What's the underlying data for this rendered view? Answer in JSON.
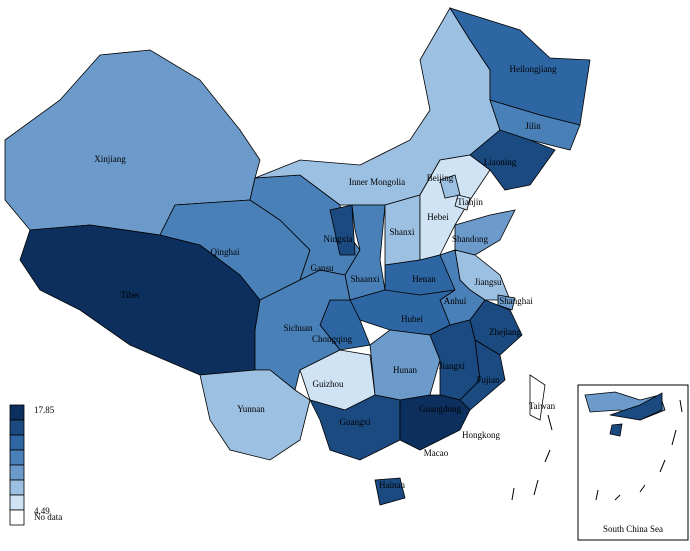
{
  "map": {
    "regions": [
      {
        "label": "Xinjiang",
        "color": "#6c9bcb"
      },
      {
        "label": "Tibet",
        "color": "#0d2f5e"
      },
      {
        "label": "Qinghai",
        "color": "#4a80b8"
      },
      {
        "label": "Gansu",
        "color": "#4a80b8"
      },
      {
        "label": "Inner Mongolia",
        "color": "#9cc0e2"
      },
      {
        "label": "Heilongjiang",
        "color": "#2d66a3"
      },
      {
        "label": "Jilin",
        "color": "#4a80b8"
      },
      {
        "label": "Liaoning",
        "color": "#1a4a80"
      },
      {
        "label": "Ningxia",
        "color": "#1a4a80"
      },
      {
        "label": "Shaanxi",
        "color": "#4a80b8"
      },
      {
        "label": "Shanxi",
        "color": "#9cc0e2"
      },
      {
        "label": "Hebei",
        "color": "#cfe3f5"
      },
      {
        "label": "Beijing",
        "color": "#9cc0e2"
      },
      {
        "label": "Tianjin",
        "color": "#cfe3f5"
      },
      {
        "label": "Shandong",
        "color": "#6c9bcb"
      },
      {
        "label": "Henan",
        "color": "#2d66a3"
      },
      {
        "label": "Jiangsu",
        "color": "#9cc0e2"
      },
      {
        "label": "Anhui",
        "color": "#4a80b8"
      },
      {
        "label": "Shanghai",
        "color": "#6c9bcb"
      },
      {
        "label": "Zhejiang",
        "color": "#1a4a80"
      },
      {
        "label": "Hubei",
        "color": "#2d66a3"
      },
      {
        "label": "Chongqing",
        "color": "#2d66a3"
      },
      {
        "label": "Sichuan",
        "color": "#4a80b8"
      },
      {
        "label": "Guizhou",
        "color": "#cfe3f5"
      },
      {
        "label": "Yunnan",
        "color": "#9cc0e2"
      },
      {
        "label": "Hunan",
        "color": "#6c9bcb"
      },
      {
        "label": "Jiangxi",
        "color": "#1a4a80"
      },
      {
        "label": "Fujian",
        "color": "#1a4a80"
      },
      {
        "label": "Guangxi",
        "color": "#1a4a80"
      },
      {
        "label": "Guangdong",
        "color": "#0d2f5e"
      },
      {
        "label": "Hainan",
        "color": "#1a4a80"
      },
      {
        "label": "Taiwan",
        "color": "#ffffff"
      }
    ],
    "city_labels": [
      "Hongkong",
      "Macao"
    ],
    "legend": {
      "colors": [
        "#0d2f5e",
        "#1a4a80",
        "#2d66a3",
        "#4a80b8",
        "#6c9bcb",
        "#9cc0e2",
        "#cfe3f5",
        "#ffffff"
      ],
      "max_label": "17.85",
      "min_label": "4.49",
      "no_data_label": "No data"
    },
    "inset": {
      "label": "South China Sea"
    }
  }
}
